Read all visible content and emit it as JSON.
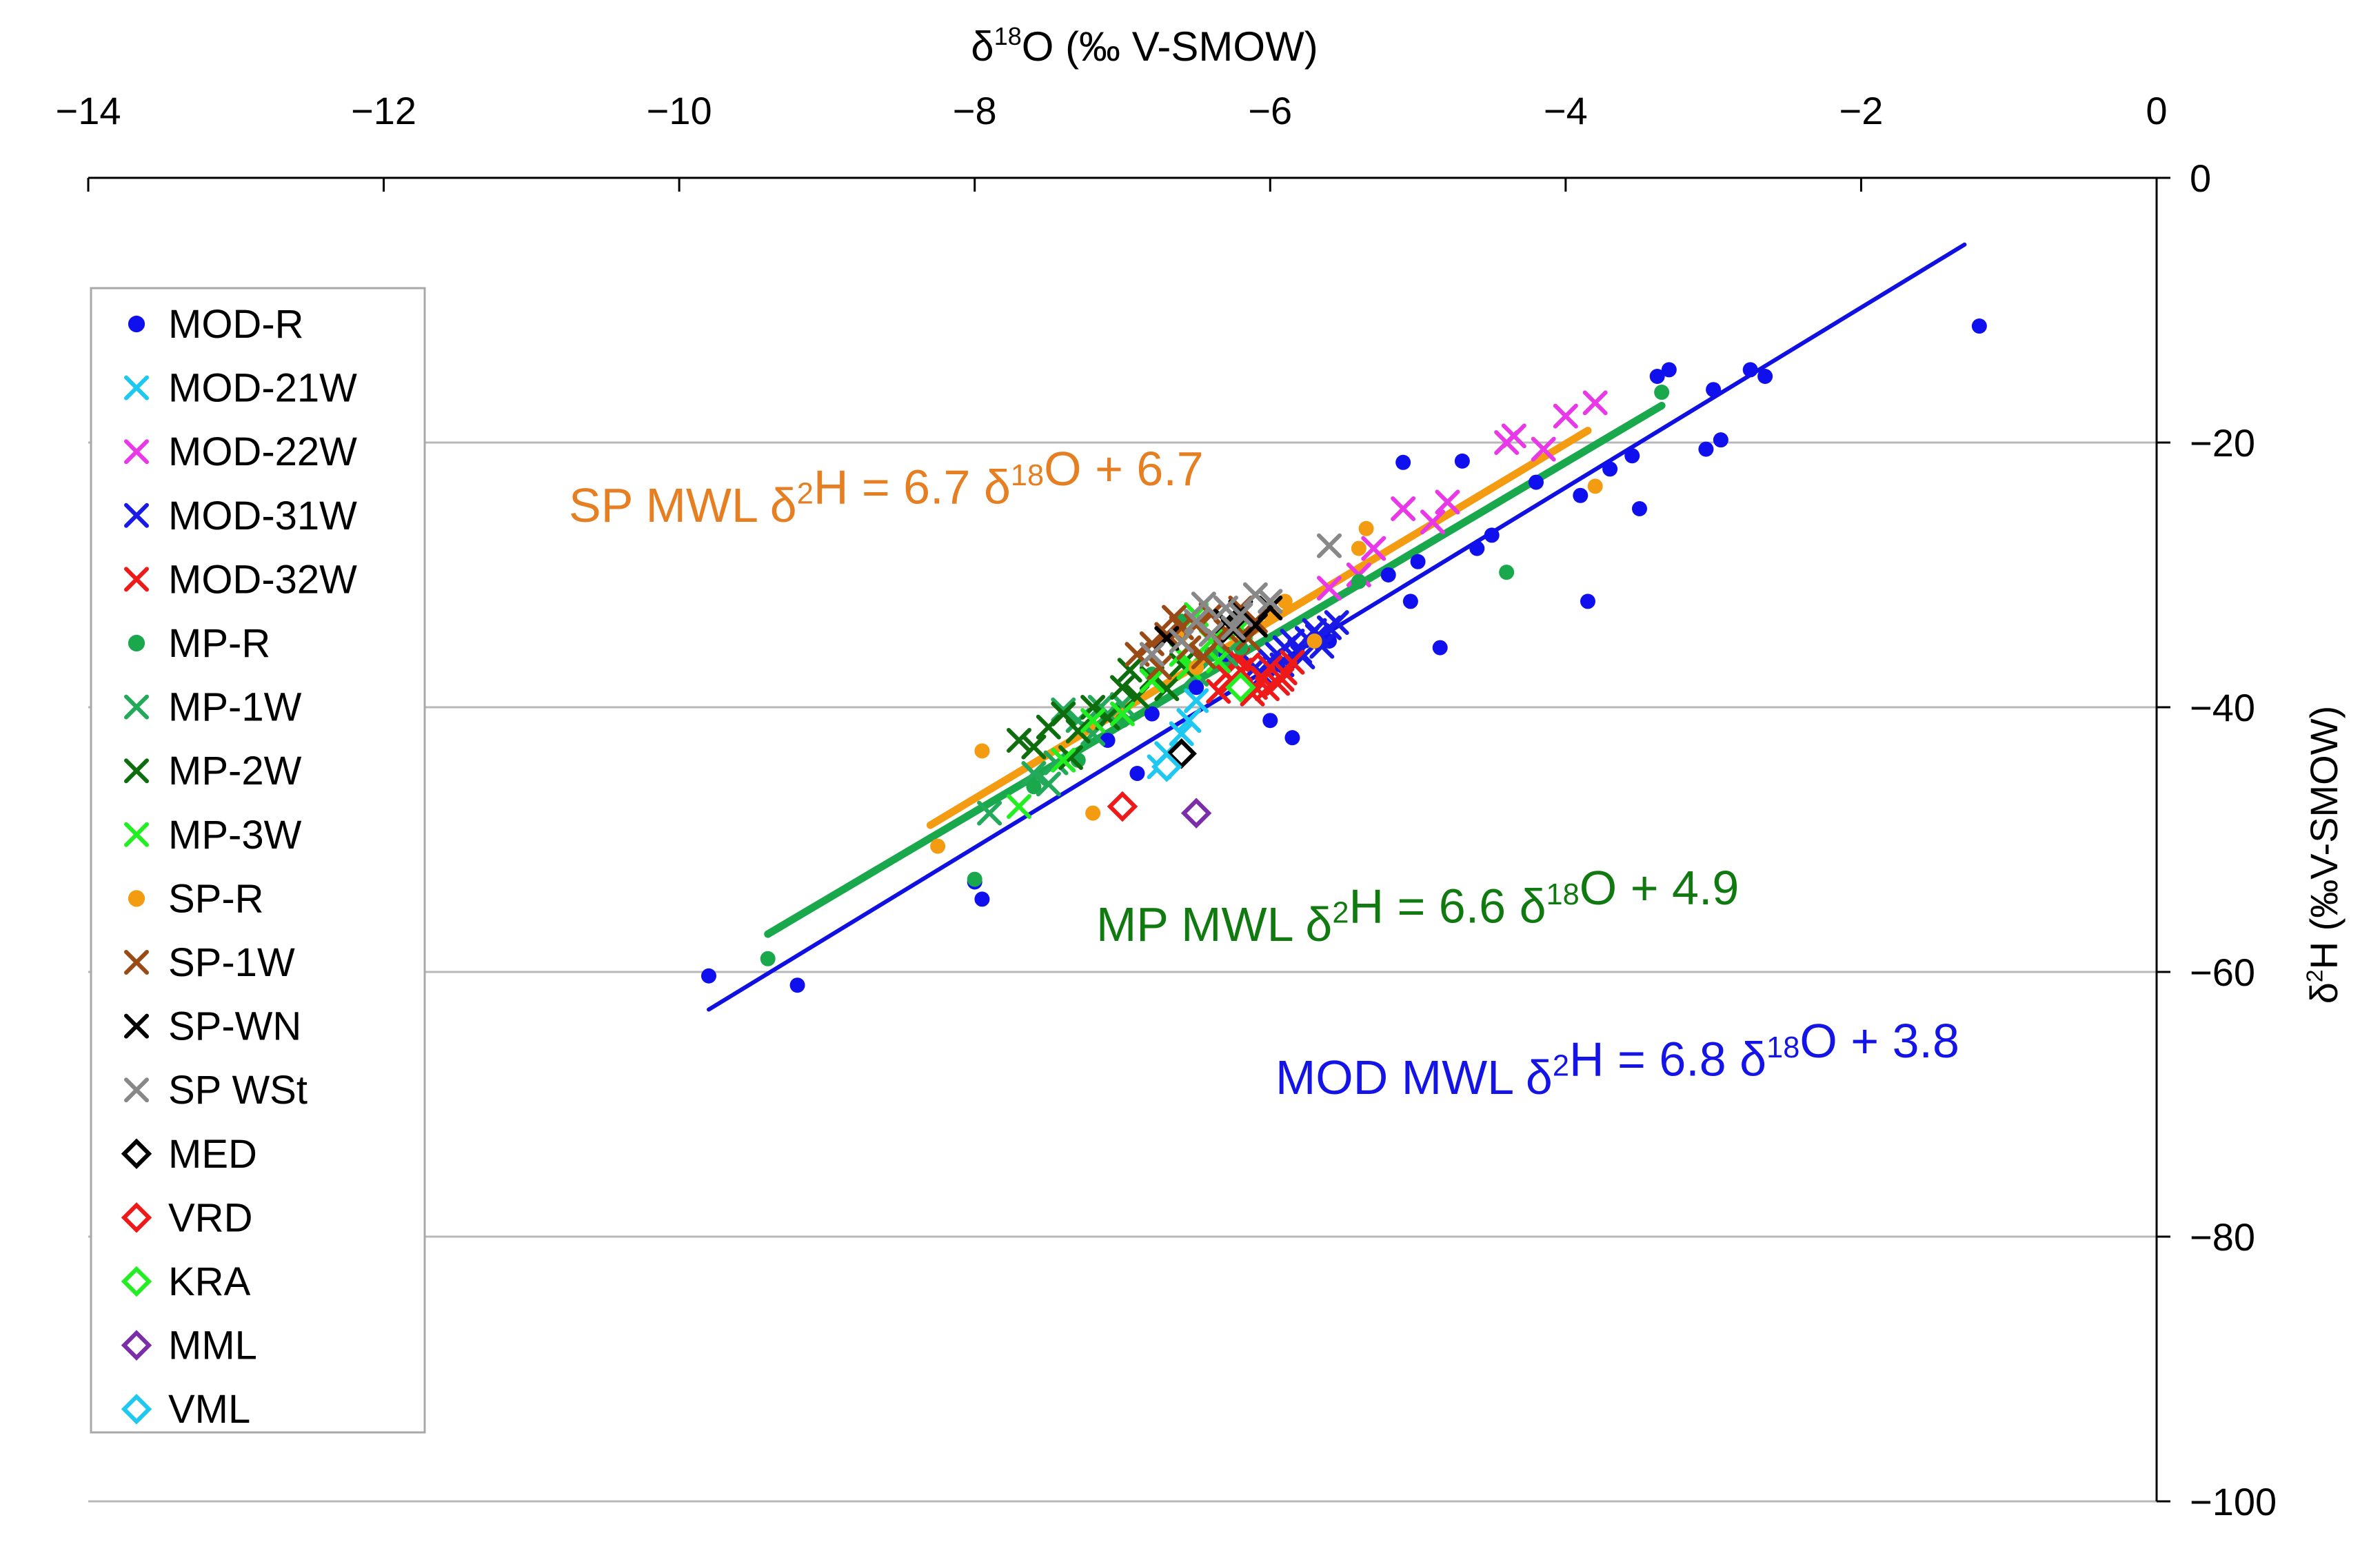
{
  "chart_data": {
    "type": "scatter",
    "title": "",
    "xlabel": "δ18O (‰ V-SMOW)",
    "ylabel": "δ2H (‰V-SMOW)",
    "xlim": [
      -14,
      0
    ],
    "ylim": [
      -100,
      0
    ],
    "x_ticks": [
      -14,
      -12,
      -10,
      -8,
      -6,
      -4,
      -2,
      0
    ],
    "y_ticks": [
      0,
      -20,
      -40,
      -60,
      -80,
      -100
    ],
    "x_tick_labels": [
      "−14",
      "−12",
      "−10",
      "−8",
      "−6",
      "−4",
      "−2",
      "0"
    ],
    "y_tick_labels": [
      "0",
      "−20",
      "−40",
      "−60",
      "−80",
      "−100"
    ],
    "x_axis_position": "top",
    "y_axis_position": "right",
    "grid": "horizontal",
    "legend_position": "left",
    "lines": [
      {
        "name": "MOD MWL",
        "slope": 6.8,
        "intercept": 3.8,
        "x_range": [
          -9.8,
          -1.3
        ],
        "color": "#1010e0"
      },
      {
        "name": "MP MWL",
        "slope": 6.6,
        "intercept": 4.9,
        "x_range": [
          -9.4,
          -3.35
        ],
        "color": "#1aa84c"
      },
      {
        "name": "SP MWL",
        "slope": 6.7,
        "intercept": 6.7,
        "x_range": [
          -8.3,
          -3.85
        ],
        "color": "#f39c12"
      }
    ],
    "annotations": [
      {
        "label": "SP MWL",
        "equation": "δ2H = 6.7 δ18O  + 6.7",
        "color": "#e67e22"
      },
      {
        "label": "MP  MWL",
        "equation": "δ2H = 6.6 δ18O + 4.9",
        "color": "#107a10"
      },
      {
        "label": "MOD MWL",
        "equation": "δ2H = 6.8 δ18O + 3.8",
        "color": "#1414e6"
      }
    ],
    "series": [
      {
        "name": "MOD-R",
        "marker": "dot",
        "color": "#1010ee",
        "x": [
          -9.8,
          -9.2,
          -8.0,
          -7.95,
          -7.1,
          -6.9,
          -6.65,
          -6.5,
          -6.0,
          -5.85,
          -5.6,
          -5.1,
          -5.05,
          -4.85,
          -4.7,
          -4.6,
          -4.2,
          -3.9,
          -3.85,
          -3.7,
          -3.55,
          -3.5,
          -3.38,
          -3.3,
          -3.05,
          -3.0,
          -2.95,
          -2.75,
          -2.65,
          -1.2,
          -5.2,
          -5.0,
          -6.3,
          -6.8,
          -4.5
        ],
        "y": [
          -60.3,
          -61.0,
          -53.2,
          -54.5,
          -42.5,
          -45.0,
          -44.0,
          -38.5,
          -41.0,
          -42.3,
          -35.0,
          -21.5,
          -32.0,
          -35.5,
          -21.4,
          -28.0,
          -23.0,
          -24.0,
          -32.0,
          -22.0,
          -21.0,
          -25.0,
          -15.0,
          -14.5,
          -20.5,
          -16.0,
          -19.8,
          -14.5,
          -15.0,
          -11.2,
          -30.0,
          -29.0,
          -36.0,
          -40.5,
          -27.0
        ]
      },
      {
        "name": "MOD-21W",
        "marker": "x",
        "color": "#1ec8f0",
        "x": [
          -6.7,
          -6.6,
          -6.55,
          -6.5,
          -6.75
        ],
        "y": [
          -43.5,
          -42.0,
          -41.0,
          -39.5,
          -44.5
        ]
      },
      {
        "name": "MOD-22W",
        "marker": "x",
        "color": "#e838e8",
        "x": [
          -5.6,
          -5.4,
          -5.1,
          -4.8,
          -4.4,
          -4.35,
          -4.15,
          -4.0,
          -3.8,
          -5.3,
          -4.9
        ],
        "y": [
          -31.0,
          -30.0,
          -25.0,
          -24.5,
          -20.0,
          -19.5,
          -20.5,
          -18.0,
          -17.0,
          -28.0,
          -26.0
        ]
      },
      {
        "name": "MOD-31W",
        "marker": "x",
        "color": "#1a1ae6",
        "x": [
          -6.1,
          -6.0,
          -5.95,
          -5.9,
          -5.85,
          -5.8,
          -5.75,
          -5.7,
          -5.65,
          -5.6,
          -5.55,
          -6.05,
          -5.92,
          -5.78,
          -5.68
        ],
        "y": [
          -37.0,
          -36.5,
          -36.0,
          -35.5,
          -35.0,
          -35.8,
          -34.8,
          -34.2,
          -35.4,
          -34.0,
          -33.6,
          -37.6,
          -36.8,
          -36.2,
          -34.6
        ]
      },
      {
        "name": "MOD-32W",
        "marker": "x",
        "color": "#ee1a1a",
        "x": [
          -6.3,
          -6.25,
          -6.2,
          -6.15,
          -6.1,
          -6.05,
          -6.0,
          -5.95,
          -5.9,
          -5.85,
          -6.35,
          -6.12,
          -6.02,
          -5.92,
          -6.22
        ],
        "y": [
          -37.5,
          -38.0,
          -37.2,
          -36.8,
          -38.5,
          -37.8,
          -37.0,
          -38.2,
          -37.4,
          -36.6,
          -38.8,
          -39.0,
          -38.6,
          -37.9,
          -36.4
        ]
      },
      {
        "name": "MP-R",
        "marker": "dot",
        "color": "#1aa84c",
        "x": [
          -9.4,
          -8.0,
          -7.6,
          -7.3,
          -7.0,
          -6.6,
          -6.4,
          -6.2,
          -4.4,
          -3.35,
          -5.4,
          -6.8
        ],
        "y": [
          -59.0,
          -53.0,
          -46.0,
          -44.0,
          -41.0,
          -33.5,
          -36.0,
          -35.5,
          -29.8,
          -16.2,
          -30.5,
          -37.5
        ]
      },
      {
        "name": "MP-1W",
        "marker": "x",
        "color": "#22aa5a",
        "x": [
          -7.9,
          -7.6,
          -7.5,
          -7.4,
          -7.3,
          -7.2,
          -7.1,
          -7.0,
          -6.8,
          -6.5,
          -6.3,
          -7.45,
          -7.15
        ],
        "y": [
          -48.0,
          -45.0,
          -45.8,
          -40.2,
          -41.0,
          -42.0,
          -40.5,
          -39.8,
          -38.0,
          -37.5,
          -36.0,
          -44.2,
          -40.0
        ]
      },
      {
        "name": "MP-2W",
        "marker": "x",
        "color": "#0e6e0e",
        "x": [
          -7.7,
          -7.6,
          -7.5,
          -7.4,
          -7.3,
          -7.2,
          -7.1,
          -7.0,
          -6.9,
          -6.8,
          -6.7,
          -6.6,
          -7.35,
          -6.95
        ],
        "y": [
          -42.5,
          -43.0,
          -41.5,
          -40.5,
          -41.8,
          -40.0,
          -40.8,
          -38.5,
          -39.2,
          -37.8,
          -38.6,
          -36.8,
          -43.8,
          -37.2
        ]
      },
      {
        "name": "MP-3W",
        "marker": "x",
        "color": "#22ee22",
        "x": [
          -7.7,
          -7.4,
          -7.2,
          -7.0,
          -6.8,
          -6.6,
          -6.5,
          -6.4,
          -6.3,
          -6.2,
          -6.35,
          -6.55
        ],
        "y": [
          -47.5,
          -44.0,
          -41.0,
          -40.5,
          -38.0,
          -36.0,
          -33.0,
          -35.0,
          -33.5,
          -34.0,
          -36.5,
          -37.0
        ]
      },
      {
        "name": "SP-R",
        "marker": "dot",
        "color": "#f39c12",
        "x": [
          -8.25,
          -7.95,
          -7.2,
          -6.5,
          -6.0,
          -5.7,
          -5.4,
          -5.35,
          -3.8,
          -6.6,
          -5.9
        ],
        "y": [
          -50.5,
          -43.3,
          -48.0,
          -37.0,
          -33.0,
          -35.0,
          -28.0,
          -26.5,
          -23.3,
          -34.5,
          -32.0
        ]
      },
      {
        "name": "SP-1W",
        "marker": "x",
        "color": "#9a4a14",
        "x": [
          -6.9,
          -6.8,
          -6.7,
          -6.6,
          -6.55,
          -6.5,
          -6.4,
          -6.3,
          -6.2,
          -6.1,
          -6.0,
          -6.75,
          -6.45,
          -6.15,
          -6.65,
          -6.35
        ],
        "y": [
          -36.0,
          -35.2,
          -34.5,
          -34.0,
          -35.5,
          -33.8,
          -33.0,
          -34.2,
          -32.5,
          -33.5,
          -32.0,
          -37.0,
          -36.2,
          -34.8,
          -33.2,
          -35.0
        ]
      },
      {
        "name": "SP-WN",
        "marker": "x",
        "color": "#000000",
        "x": [
          -6.3,
          -6.2,
          -6.1,
          -6.0,
          -6.7,
          -6.25
        ],
        "y": [
          -33.5,
          -32.8,
          -33.8,
          -32.5,
          -34.8,
          -34.2
        ]
      },
      {
        "name": "SP WSt",
        "marker": "x",
        "color": "#888888",
        "x": [
          -6.8,
          -6.6,
          -6.5,
          -6.4,
          -6.3,
          -6.2,
          -6.1,
          -6.0,
          -5.6,
          -6.45,
          -6.25
        ],
        "y": [
          -36.0,
          -35.0,
          -33.5,
          -34.5,
          -32.5,
          -33.0,
          -31.5,
          -32.0,
          -27.8,
          -32.2,
          -34.0
        ]
      },
      {
        "name": "MED",
        "marker": "diamond",
        "color": "#000000",
        "x": [
          -6.6
        ],
        "y": [
          -43.5
        ]
      },
      {
        "name": "VRD",
        "marker": "diamond",
        "color": "#ee1a1a",
        "x": [
          -7.0
        ],
        "y": [
          -47.5
        ]
      },
      {
        "name": "KRA",
        "marker": "diamond",
        "color": "#22ee22",
        "x": [
          -6.2
        ],
        "y": [
          -38.5
        ]
      },
      {
        "name": "MML",
        "marker": "diamond",
        "color": "#7a2fa8",
        "x": [
          -6.5
        ],
        "y": [
          -48.0
        ]
      },
      {
        "name": "VML",
        "marker": "diamond",
        "color": "#1ec8f0",
        "x": [
          -6.7
        ],
        "y": [
          -44.5
        ]
      }
    ]
  }
}
